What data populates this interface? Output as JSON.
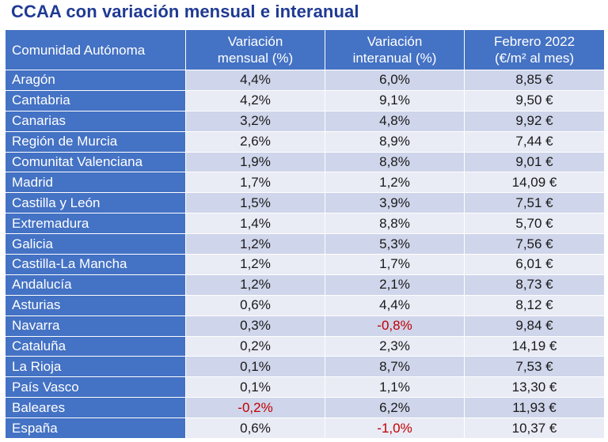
{
  "title": "CCAA con variación mensual e interanual",
  "colors": {
    "header": "#4472c4",
    "band_dark": "#cfd5ea",
    "band_light": "#e9ebf5",
    "negative": "#c00000",
    "title": "#1f3a93"
  },
  "headers": {
    "region": "Comunidad Autónoma",
    "monthly_line1": "Variación",
    "monthly_line2": "mensual (%)",
    "annual_line1": "Variación",
    "annual_line2": "interanual (%)",
    "price_line1": "Febrero 2022",
    "price_line2": "(€/m² al mes)"
  },
  "rows": [
    {
      "region": "Aragón",
      "monthly": "4,4%",
      "annual": "6,0%",
      "price": "8,85 €"
    },
    {
      "region": "Cantabria",
      "monthly": "4,2%",
      "annual": "9,1%",
      "price": "9,50 €"
    },
    {
      "region": "Canarias",
      "monthly": "3,2%",
      "annual": "4,8%",
      "price": "9,92 €"
    },
    {
      "region": "Región de Murcia",
      "monthly": "2,6%",
      "annual": "8,9%",
      "price": "7,44 €"
    },
    {
      "region": "Comunitat Valenciana",
      "monthly": "1,9%",
      "annual": "8,8%",
      "price": "9,01 €"
    },
    {
      "region": "Madrid",
      "monthly": "1,7%",
      "annual": "1,2%",
      "price": "14,09 €"
    },
    {
      "region": "Castilla y León",
      "monthly": "1,5%",
      "annual": "3,9%",
      "price": "7,51 €"
    },
    {
      "region": "Extremadura",
      "monthly": "1,4%",
      "annual": "8,8%",
      "price": "5,70 €"
    },
    {
      "region": "Galicia",
      "monthly": "1,2%",
      "annual": "5,3%",
      "price": "7,56 €"
    },
    {
      "region": "Castilla-La Mancha",
      "monthly": "1,2%",
      "annual": "1,7%",
      "price": "6,01 €"
    },
    {
      "region": "Andalucía",
      "monthly": "1,2%",
      "annual": "2,1%",
      "price": "8,73 €"
    },
    {
      "region": "Asturias",
      "monthly": "0,6%",
      "annual": "4,4%",
      "price": "8,12 €"
    },
    {
      "region": "Navarra",
      "monthly": "0,3%",
      "annual": "-0,8%",
      "price": "9,84 €"
    },
    {
      "region": "Cataluña",
      "monthly": "0,2%",
      "annual": "2,3%",
      "price": "14,19 €"
    },
    {
      "region": "La Rioja",
      "monthly": "0,1%",
      "annual": "8,7%",
      "price": "7,53 €"
    },
    {
      "region": "País Vasco",
      "monthly": "0,1%",
      "annual": "1,1%",
      "price": "13,30 €"
    },
    {
      "region": "Baleares",
      "monthly": "-0,2%",
      "annual": "6,2%",
      "price": "11,93 €"
    },
    {
      "region": "España",
      "monthly": "0,6%",
      "annual": "-1,0%",
      "price": "10,37 €"
    }
  ]
}
